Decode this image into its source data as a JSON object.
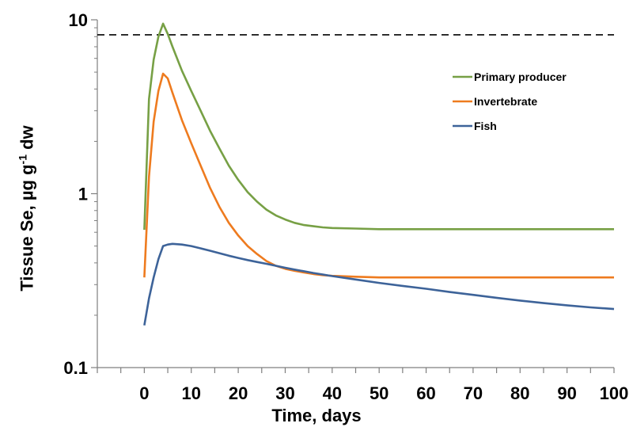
{
  "chart_data": {
    "type": "line",
    "x_axis": {
      "label": "Time, days",
      "range": [
        -10,
        100
      ],
      "ticks": [
        0,
        10,
        20,
        30,
        40,
        50,
        60,
        70,
        80,
        90,
        100
      ],
      "tick_labels": [
        "0",
        "10",
        "20",
        "30",
        "40",
        "50",
        "60",
        "70",
        "80",
        "90",
        "100"
      ]
    },
    "y_axis": {
      "label_main": "Tissue Se, µg g",
      "label_sup": "-1",
      "label_tail": " dw",
      "scale": "log",
      "range": [
        0.1,
        10
      ],
      "ticks": [
        0.1,
        1,
        10
      ],
      "tick_labels": [
        "0.1",
        "1",
        "10"
      ]
    },
    "reference_line": {
      "y": 8.2,
      "style": "dashed",
      "color": "#000000"
    },
    "legend": {
      "position": "top-right"
    },
    "series": [
      {
        "name": "Primary producer",
        "color": "#77a045",
        "points": [
          [
            0,
            0.62
          ],
          [
            1,
            3.5
          ],
          [
            2,
            5.9
          ],
          [
            3,
            8.0
          ],
          [
            4,
            9.5
          ],
          [
            5,
            8.3
          ],
          [
            6,
            7.0
          ],
          [
            8,
            5.1
          ],
          [
            10,
            3.9
          ],
          [
            12,
            3.0
          ],
          [
            14,
            2.3
          ],
          [
            16,
            1.82
          ],
          [
            18,
            1.45
          ],
          [
            20,
            1.2
          ],
          [
            22,
            1.02
          ],
          [
            24,
            0.9
          ],
          [
            26,
            0.81
          ],
          [
            28,
            0.75
          ],
          [
            30,
            0.71
          ],
          [
            32,
            0.68
          ],
          [
            34,
            0.66
          ],
          [
            36,
            0.65
          ],
          [
            38,
            0.64
          ],
          [
            40,
            0.635
          ],
          [
            45,
            0.63
          ],
          [
            50,
            0.625
          ],
          [
            60,
            0.625
          ],
          [
            70,
            0.625
          ],
          [
            80,
            0.625
          ],
          [
            90,
            0.625
          ],
          [
            100,
            0.625
          ]
        ]
      },
      {
        "name": "Invertebrate",
        "color": "#ee7b1f",
        "points": [
          [
            0,
            0.33
          ],
          [
            1,
            1.25
          ],
          [
            2,
            2.6
          ],
          [
            3,
            3.9
          ],
          [
            4,
            4.9
          ],
          [
            5,
            4.6
          ],
          [
            6,
            3.8
          ],
          [
            8,
            2.65
          ],
          [
            10,
            1.95
          ],
          [
            12,
            1.45
          ],
          [
            14,
            1.08
          ],
          [
            16,
            0.84
          ],
          [
            18,
            0.68
          ],
          [
            20,
            0.575
          ],
          [
            22,
            0.5
          ],
          [
            24,
            0.45
          ],
          [
            26,
            0.41
          ],
          [
            28,
            0.385
          ],
          [
            30,
            0.37
          ],
          [
            32,
            0.36
          ],
          [
            34,
            0.352
          ],
          [
            36,
            0.345
          ],
          [
            38,
            0.34
          ],
          [
            40,
            0.337
          ],
          [
            45,
            0.333
          ],
          [
            50,
            0.33
          ],
          [
            60,
            0.33
          ],
          [
            70,
            0.33
          ],
          [
            80,
            0.33
          ],
          [
            90,
            0.33
          ],
          [
            100,
            0.33
          ]
        ]
      },
      {
        "name": "Fish",
        "color": "#3d6399",
        "points": [
          [
            0,
            0.175
          ],
          [
            1,
            0.25
          ],
          [
            2,
            0.33
          ],
          [
            3,
            0.42
          ],
          [
            4,
            0.5
          ],
          [
            5,
            0.51
          ],
          [
            6,
            0.515
          ],
          [
            8,
            0.51
          ],
          [
            10,
            0.5
          ],
          [
            12,
            0.485
          ],
          [
            14,
            0.47
          ],
          [
            16,
            0.455
          ],
          [
            18,
            0.44
          ],
          [
            20,
            0.427
          ],
          [
            22,
            0.415
          ],
          [
            24,
            0.405
          ],
          [
            26,
            0.395
          ],
          [
            28,
            0.385
          ],
          [
            30,
            0.375
          ],
          [
            32,
            0.366
          ],
          [
            34,
            0.358
          ],
          [
            36,
            0.35
          ],
          [
            38,
            0.343
          ],
          [
            40,
            0.336
          ],
          [
            45,
            0.321
          ],
          [
            50,
            0.307
          ],
          [
            55,
            0.295
          ],
          [
            60,
            0.284
          ],
          [
            65,
            0.272
          ],
          [
            70,
            0.262
          ],
          [
            75,
            0.252
          ],
          [
            80,
            0.243
          ],
          [
            85,
            0.235
          ],
          [
            90,
            0.228
          ],
          [
            95,
            0.222
          ],
          [
            100,
            0.217
          ]
        ]
      }
    ]
  }
}
